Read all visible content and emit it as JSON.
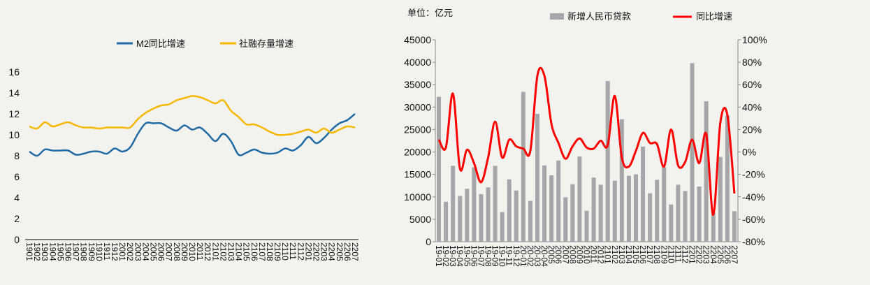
{
  "chart_data": [
    {
      "type": "line",
      "title": "",
      "xlabel": "",
      "ylabel": "",
      "ylim": [
        0,
        16
      ],
      "yticks": [
        0,
        2,
        4,
        6,
        8,
        10,
        12,
        14,
        16
      ],
      "grid": false,
      "legend": "top",
      "categories": [
        "1901",
        "1902",
        "1903",
        "1904",
        "1905",
        "1906",
        "1907",
        "1908",
        "1909",
        "1910",
        "1911",
        "1912",
        "2001",
        "2002",
        "2003",
        "2004",
        "2005",
        "2006",
        "2007",
        "2008",
        "2009",
        "2010",
        "2011",
        "2012",
        "2101",
        "2102",
        "2103",
        "2104",
        "2105",
        "2106",
        "2107",
        "2108",
        "2109",
        "2110",
        "2111",
        "2112",
        "2201",
        "2202",
        "2203",
        "2204",
        "2205",
        "2206",
        "2207"
      ],
      "series": [
        {
          "name": "M2同比增速",
          "color": "#1f6aa5",
          "values": [
            8.4,
            8.0,
            8.6,
            8.5,
            8.5,
            8.5,
            8.1,
            8.2,
            8.4,
            8.4,
            8.2,
            8.7,
            8.4,
            8.8,
            10.1,
            11.1,
            11.1,
            11.1,
            10.7,
            10.4,
            10.9,
            10.5,
            10.7,
            10.1,
            9.4,
            10.1,
            9.4,
            8.1,
            8.3,
            8.6,
            8.3,
            8.2,
            8.3,
            8.7,
            8.5,
            9.0,
            9.8,
            9.2,
            9.7,
            10.5,
            11.1,
            11.4,
            12.0
          ]
        },
        {
          "name": "社融存量增速",
          "color": "#f5b800",
          "values": [
            10.8,
            10.6,
            11.2,
            10.8,
            11.0,
            11.2,
            10.9,
            10.7,
            10.7,
            10.6,
            10.7,
            10.7,
            10.7,
            10.7,
            11.5,
            12.1,
            12.5,
            12.8,
            12.9,
            13.3,
            13.5,
            13.7,
            13.6,
            13.3,
            13.0,
            13.3,
            12.3,
            11.7,
            11.0,
            11.0,
            10.7,
            10.3,
            10.0,
            10.0,
            10.1,
            10.3,
            10.5,
            10.2,
            10.6,
            10.2,
            10.5,
            10.8,
            10.7
          ]
        }
      ]
    },
    {
      "type": "bar+line",
      "unit_label": "单位：亿元",
      "ylim": [
        0,
        45000
      ],
      "yticks": [
        "0",
        "5000",
        "10000",
        "15000",
        "20000",
        "25000",
        "30000",
        "35000",
        "40000",
        "45000"
      ],
      "y2lim": [
        -80,
        100
      ],
      "y2ticks": [
        "-80%",
        "-60%",
        "-40%",
        "-20%",
        "0%",
        "20%",
        "40%",
        "60%",
        "80%",
        "100%"
      ],
      "grid": false,
      "legend": "top",
      "categories": [
        "19-01",
        "19-02",
        "19-03",
        "19-04",
        "19-05",
        "19-06",
        "19-07",
        "19-08",
        "19-09",
        "19-10",
        "19-11",
        "19-12",
        "20-01",
        "20-02",
        "20-03",
        "20-04",
        "2005",
        "2006",
        "2007",
        "2008",
        "2009",
        "2010",
        "2011",
        "2012",
        "2101",
        "2102",
        "2103",
        "2104",
        "2105",
        "2106",
        "2107",
        "2108",
        "2109",
        "2110",
        "2111",
        "2112",
        "2201",
        "2202",
        "2203",
        "2204",
        "2205",
        "2206",
        "2207"
      ],
      "series": [
        {
          "name": "新增人民币贷款",
          "type": "bar",
          "axis": "left",
          "color": "#a6a6a6",
          "values": [
            32300,
            8900,
            16900,
            10200,
            11800,
            16600,
            10600,
            12100,
            16900,
            6600,
            13900,
            11400,
            33400,
            9100,
            28500,
            17000,
            14800,
            18100,
            9900,
            12800,
            19000,
            6900,
            14300,
            12700,
            35800,
            13600,
            27300,
            14700,
            15000,
            21200,
            10800,
            13800,
            16600,
            8300,
            12700,
            11300,
            39800,
            12300,
            31300,
            6500,
            18900,
            28100,
            6800
          ]
        },
        {
          "name": "同比增速",
          "type": "line",
          "axis": "right",
          "color": "#ff0000",
          "values": [
            11,
            4,
            52,
            -15,
            2,
            -10,
            -27,
            -5,
            27,
            -5,
            11,
            5,
            3,
            1,
            68,
            68,
            25,
            8,
            -6,
            5,
            12,
            4,
            3,
            10,
            6,
            50,
            -5,
            -13,
            1,
            17,
            8,
            7,
            -13,
            20,
            -12,
            -9,
            11,
            -10,
            16,
            -56,
            26,
            33,
            -37
          ]
        }
      ]
    }
  ]
}
